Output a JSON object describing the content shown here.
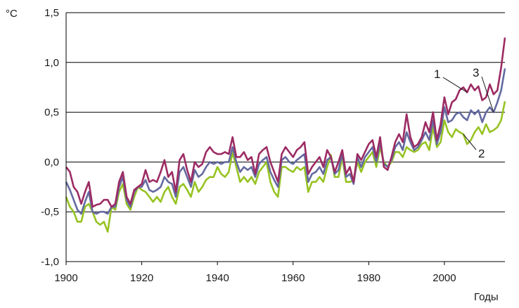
{
  "chart_data": {
    "type": "line",
    "title": "",
    "ylabel": "°C",
    "xlabel": "Годы",
    "xlim": [
      1900,
      2016
    ],
    "ylim": [
      -1.0,
      1.5
    ],
    "x_ticks": [
      1900,
      1920,
      1940,
      1960,
      1980,
      2000
    ],
    "x_tick_labels": [
      "1900",
      "1920",
      "1940",
      "1960",
      "1980",
      "2000"
    ],
    "y_ticks": [
      -1.0,
      -0.5,
      0.0,
      0.5,
      1.0,
      1.5
    ],
    "y_tick_labels": [
      "-1,0",
      "-0,5",
      "0,0",
      "0,5",
      "1,0",
      "1,5"
    ],
    "grid": "horizontal",
    "x": [
      1900,
      1901,
      1902,
      1903,
      1904,
      1905,
      1906,
      1907,
      1908,
      1909,
      1910,
      1911,
      1912,
      1913,
      1914,
      1915,
      1916,
      1917,
      1918,
      1919,
      1920,
      1921,
      1922,
      1923,
      1924,
      1925,
      1926,
      1927,
      1928,
      1929,
      1930,
      1931,
      1932,
      1933,
      1934,
      1935,
      1936,
      1937,
      1938,
      1939,
      1940,
      1941,
      1942,
      1943,
      1944,
      1945,
      1946,
      1947,
      1948,
      1949,
      1950,
      1951,
      1952,
      1953,
      1954,
      1955,
      1956,
      1957,
      1958,
      1959,
      1960,
      1961,
      1962,
      1963,
      1964,
      1965,
      1966,
      1967,
      1968,
      1969,
      1970,
      1971,
      1972,
      1973,
      1974,
      1975,
      1976,
      1977,
      1978,
      1979,
      1980,
      1981,
      1982,
      1983,
      1984,
      1985,
      1986,
      1987,
      1988,
      1989,
      1990,
      1991,
      1992,
      1993,
      1994,
      1995,
      1996,
      1997,
      1998,
      1999,
      2000,
      2001,
      2002,
      2003,
      2004,
      2005,
      2006,
      2007,
      2008,
      2009,
      2010,
      2011,
      2012,
      2013,
      2014,
      2015,
      2016
    ],
    "series": [
      {
        "name": "1",
        "color": "#9c2b63",
        "label": "1",
        "values": [
          -0.05,
          -0.1,
          -0.25,
          -0.3,
          -0.42,
          -0.3,
          -0.2,
          -0.45,
          -0.43,
          -0.42,
          -0.38,
          -0.38,
          -0.45,
          -0.42,
          -0.2,
          -0.1,
          -0.35,
          -0.42,
          -0.28,
          -0.25,
          -0.22,
          -0.08,
          -0.2,
          -0.18,
          -0.2,
          -0.1,
          0.02,
          -0.15,
          -0.1,
          -0.3,
          0.02,
          0.08,
          -0.08,
          -0.2,
          0.0,
          -0.05,
          -0.02,
          0.1,
          0.15,
          0.1,
          0.08,
          0.08,
          0.1,
          0.08,
          0.25,
          0.05,
          0.05,
          0.1,
          0.02,
          0.05,
          -0.12,
          0.08,
          0.12,
          0.15,
          0.0,
          -0.1,
          -0.2,
          0.08,
          0.15,
          0.1,
          0.05,
          0.12,
          0.15,
          0.2,
          -0.12,
          -0.05,
          0.0,
          0.05,
          -0.05,
          0.12,
          0.05,
          -0.1,
          0.0,
          0.12,
          -0.12,
          -0.05,
          -0.2,
          0.08,
          0.02,
          0.1,
          0.18,
          0.22,
          0.05,
          0.25,
          -0.05,
          -0.08,
          0.05,
          0.2,
          0.28,
          0.2,
          0.48,
          0.25,
          0.15,
          0.18,
          0.25,
          0.4,
          0.3,
          0.5,
          0.22,
          0.38,
          0.65,
          0.48,
          0.6,
          0.63,
          0.72,
          0.75,
          0.7,
          0.78,
          0.72,
          0.76,
          0.62,
          0.65,
          0.78,
          0.68,
          0.72,
          0.95,
          1.25
        ]
      },
      {
        "name": "2",
        "color": "#97c323",
        "label": "2",
        "values": [
          -0.35,
          -0.45,
          -0.5,
          -0.6,
          -0.6,
          -0.45,
          -0.42,
          -0.5,
          -0.6,
          -0.63,
          -0.6,
          -0.7,
          -0.45,
          -0.48,
          -0.3,
          -0.22,
          -0.42,
          -0.48,
          -0.35,
          -0.25,
          -0.28,
          -0.3,
          -0.35,
          -0.4,
          -0.35,
          -0.4,
          -0.3,
          -0.25,
          -0.35,
          -0.42,
          -0.25,
          -0.22,
          -0.28,
          -0.35,
          -0.2,
          -0.3,
          -0.25,
          -0.18,
          -0.15,
          -0.15,
          -0.05,
          -0.12,
          -0.15,
          -0.1,
          0.1,
          -0.05,
          -0.2,
          -0.15,
          -0.2,
          -0.15,
          -0.22,
          -0.1,
          -0.05,
          0.0,
          -0.2,
          -0.3,
          -0.35,
          -0.05,
          -0.05,
          -0.08,
          -0.1,
          -0.05,
          -0.08,
          -0.05,
          -0.3,
          -0.2,
          -0.2,
          -0.15,
          -0.2,
          -0.05,
          0.07,
          -0.15,
          -0.15,
          0.05,
          -0.2,
          -0.2,
          -0.18,
          0.0,
          -0.1,
          0.0,
          0.05,
          0.1,
          -0.05,
          0.15,
          0.0,
          -0.05,
          0.0,
          0.1,
          0.1,
          0.05,
          0.15,
          0.12,
          0.1,
          0.12,
          0.18,
          0.2,
          0.12,
          0.35,
          0.15,
          0.2,
          0.42,
          0.3,
          0.25,
          0.33,
          0.3,
          0.28,
          0.18,
          0.22,
          0.3,
          0.35,
          0.28,
          0.38,
          0.3,
          0.32,
          0.35,
          0.42,
          0.61
        ]
      },
      {
        "name": "3",
        "color": "#646aa0",
        "label": "3",
        "values": [
          -0.2,
          -0.28,
          -0.38,
          -0.48,
          -0.52,
          -0.4,
          -0.3,
          -0.5,
          -0.52,
          -0.5,
          -0.5,
          -0.52,
          -0.45,
          -0.45,
          -0.25,
          -0.15,
          -0.38,
          -0.45,
          -0.3,
          -0.25,
          -0.25,
          -0.18,
          -0.28,
          -0.3,
          -0.28,
          -0.25,
          -0.15,
          -0.2,
          -0.22,
          -0.35,
          -0.1,
          -0.05,
          -0.15,
          -0.25,
          -0.08,
          -0.15,
          -0.12,
          -0.05,
          0.0,
          -0.02,
          0.0,
          -0.02,
          0.0,
          0.0,
          0.15,
          0.0,
          -0.1,
          -0.05,
          -0.08,
          -0.05,
          -0.15,
          -0.02,
          0.02,
          0.05,
          -0.1,
          -0.18,
          -0.25,
          0.02,
          0.05,
          0.0,
          -0.02,
          0.02,
          0.05,
          0.08,
          -0.2,
          -0.12,
          -0.1,
          -0.05,
          -0.12,
          0.02,
          0.05,
          -0.12,
          -0.08,
          0.08,
          -0.15,
          -0.12,
          -0.22,
          0.05,
          -0.05,
          0.05,
          0.1,
          0.15,
          0.0,
          0.2,
          -0.02,
          -0.05,
          0.02,
          0.15,
          0.2,
          0.12,
          0.3,
          0.2,
          0.12,
          0.15,
          0.22,
          0.3,
          0.22,
          0.42,
          0.18,
          0.3,
          0.55,
          0.4,
          0.42,
          0.48,
          0.5,
          0.45,
          0.42,
          0.52,
          0.48,
          0.52,
          0.4,
          0.5,
          0.55,
          0.5,
          0.6,
          0.72,
          0.94
        ]
      }
    ]
  }
}
